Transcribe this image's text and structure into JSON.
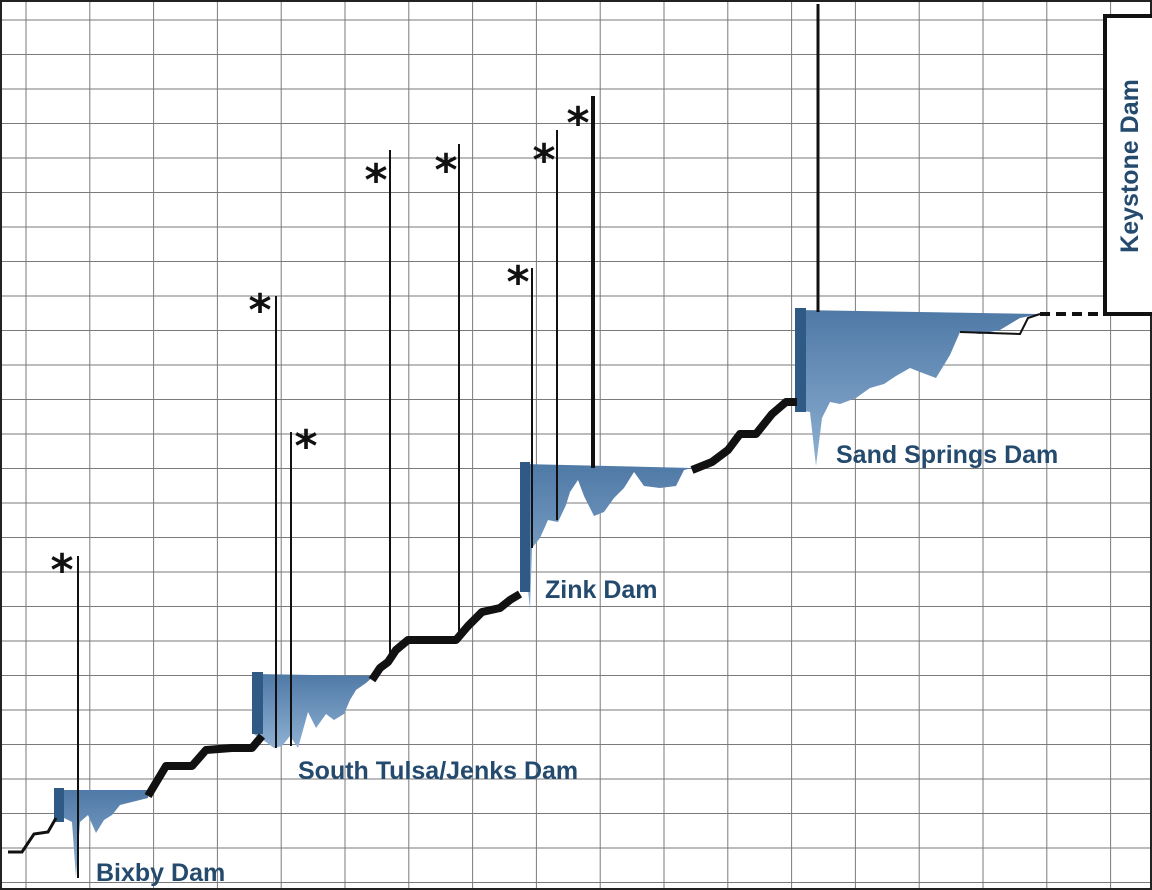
{
  "figure": {
    "colors": {
      "grid": "#7a7a7a",
      "pool_fill": "#6f94bd",
      "pool_fill_dark": "#2f5a85",
      "profile_line": "#111111",
      "label": "#244a6e"
    }
  },
  "dams": {
    "bixby": "Bixby Dam",
    "south_tulsa_jenks": "South Tulsa/Jenks Dam",
    "zink": "Zink Dam",
    "sand_springs": "Sand Springs Dam",
    "keystone": "Keystone Dam"
  },
  "markers": {
    "star": "*"
  }
}
